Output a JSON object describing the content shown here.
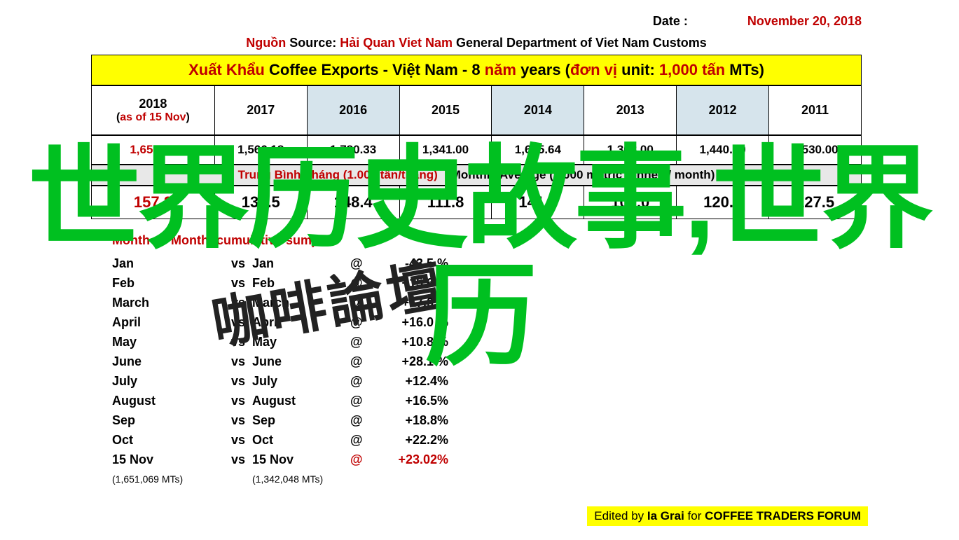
{
  "date": {
    "label": "Date :",
    "value": "November 20, 2018"
  },
  "source": {
    "p1": "Nguồn",
    "p2": "Source:",
    "p3": "Hải Quan Viet Nam",
    "p4": "General Department of Viet Nam Customs"
  },
  "title_band": {
    "p1": "Xuất Khẩu",
    "p2": "Coffee Exports - Việt Nam - 8",
    "p3": "năm",
    "p4": "years (",
    "p5": "đơn vị",
    "p6": "unit:",
    "p7": "1,000 tấn",
    "p8": "MTs)"
  },
  "years": {
    "headers": [
      "2018",
      "2017",
      "2016",
      "2015",
      "2014",
      "2013",
      "2012",
      "2011"
    ],
    "y2018_sub_pre": "(",
    "y2018_sub_mid": "as of 15 Nov",
    "y2018_sub_post": ")",
    "totals": [
      "1,651.07",
      "1,566.18",
      "1,780.33",
      "1,341.00",
      "1,695.64",
      "1,308.00",
      "1,440.00",
      "1,530.00"
    ],
    "totals_colors": [
      "#c00000",
      "#000",
      "#000",
      "#000",
      "#000",
      "#000",
      "#000",
      "#000"
    ]
  },
  "avg_band": {
    "p1": "Trung Bình Tháng (1.000 tấn/tháng)",
    "p2": "Monthly Average (1,000 metric tonnes / month)"
  },
  "avg_row": [
    "157.2",
    "130.5",
    "148.4",
    "111.8",
    "141.3",
    "109.0",
    "120.0",
    "127.5"
  ],
  "avg_first_color": "#c00000",
  "months_title": "Month vs Month (cumulative sum)",
  "months": [
    {
      "m": "Jan",
      "pct": "-43.5 %",
      "color": "#000"
    },
    {
      "m": "Feb",
      "pct": "+15.6 %",
      "color": "#000"
    },
    {
      "m": "March",
      "pct": "+17.0 %",
      "color": "#000"
    },
    {
      "m": "April",
      "pct": "+16.0 %",
      "color": "#000"
    },
    {
      "m": "May",
      "pct": "+10.8 %",
      "color": "#000"
    },
    {
      "m": "June",
      "pct": "+28.1 %",
      "color": "#000"
    },
    {
      "m": "July",
      "pct": "+12.4%",
      "color": "#000"
    },
    {
      "m": "August",
      "pct": "+16.5%",
      "color": "#000"
    },
    {
      "m": "Sep",
      "pct": "+18.8%",
      "color": "#000"
    },
    {
      "m": "Oct",
      "pct": "+22.2%",
      "color": "#000"
    },
    {
      "m": "15 Nov",
      "pct": "+23.02%",
      "color": "#c00000"
    }
  ],
  "vs": "vs",
  "at": "@",
  "sub_left": "(1,651,069 MTs)",
  "sub_right": "(1,342,048 MTs)",
  "credit": {
    "p1": "Edited by ",
    "p2": "Ia Grai",
    "p3": " for ",
    "p4": "COFFEE TRADERS FORUM"
  },
  "overlay_green_l1": "世界历史故事,世界",
  "overlay_green_l2": "历",
  "overlay_watermark": "咖啡論壇"
}
